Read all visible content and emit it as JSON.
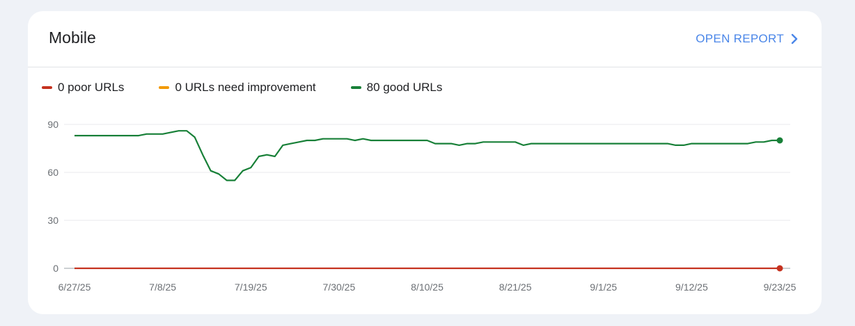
{
  "card": {
    "title": "Mobile",
    "open_report_label": "OPEN REPORT",
    "open_report_icon": "chevron-right-icon"
  },
  "legend": [
    {
      "label": "0 poor URLs",
      "color": "#c5321f"
    },
    {
      "label": "0 URLs need improvement",
      "color": "#f29900"
    },
    {
      "label": "80 good URLs",
      "color": "#188038"
    }
  ],
  "chart_data": {
    "type": "line",
    "title": "",
    "xlabel": "",
    "ylabel": "",
    "ylim": [
      0,
      90
    ],
    "yticks": [
      "0",
      "30",
      "60",
      "90"
    ],
    "xticks": [
      "6/27/25",
      "7/8/25",
      "7/19/25",
      "7/30/25",
      "8/10/25",
      "8/21/25",
      "9/1/25",
      "9/12/25",
      "9/23/25"
    ],
    "grid": true,
    "legend_position": "top-left",
    "x_start": "6/27/25",
    "x_end": "9/23/25",
    "series": [
      {
        "name": "poor URLs",
        "color": "#c5321f",
        "values": [
          [
            0,
            0
          ],
          [
            88,
            0
          ]
        ]
      },
      {
        "name": "good URLs",
        "color": "#188038",
        "values": [
          [
            0,
            83
          ],
          [
            8,
            83
          ],
          [
            9,
            84
          ],
          [
            11,
            84
          ],
          [
            13,
            86
          ],
          [
            14,
            86
          ],
          [
            15,
            82
          ],
          [
            16,
            71
          ],
          [
            17,
            61
          ],
          [
            18,
            59
          ],
          [
            19,
            55
          ],
          [
            20,
            55
          ],
          [
            21,
            61
          ],
          [
            22,
            63
          ],
          [
            23,
            70
          ],
          [
            24,
            71
          ],
          [
            25,
            70
          ],
          [
            26,
            77
          ],
          [
            27,
            78
          ],
          [
            28,
            79
          ],
          [
            29,
            80
          ],
          [
            30,
            80
          ],
          [
            31,
            81
          ],
          [
            34,
            81
          ],
          [
            35,
            80
          ],
          [
            36,
            81
          ],
          [
            37,
            80
          ],
          [
            44,
            80
          ],
          [
            45,
            78
          ],
          [
            47,
            78
          ],
          [
            48,
            77
          ],
          [
            49,
            78
          ],
          [
            50,
            78
          ],
          [
            51,
            79
          ],
          [
            55,
            79
          ],
          [
            56,
            77
          ],
          [
            57,
            78
          ],
          [
            74,
            78
          ],
          [
            75,
            77
          ],
          [
            76,
            77
          ],
          [
            77,
            78
          ],
          [
            84,
            78
          ],
          [
            85,
            79
          ],
          [
            86,
            79
          ],
          [
            87,
            80
          ],
          [
            88,
            80
          ]
        ]
      }
    ]
  }
}
